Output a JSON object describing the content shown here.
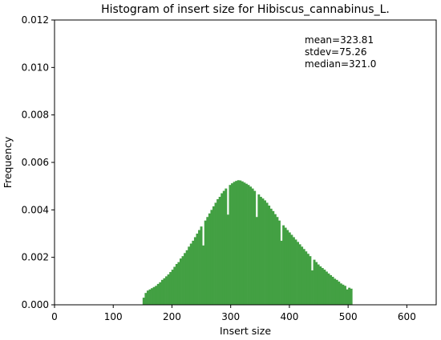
{
  "chart_data": {
    "type": "bar",
    "title": "Histogram of insert size for Hibiscus_cannabinus_L.",
    "xlabel": "Insert size",
    "ylabel": "Frequency",
    "xlim": [
      0,
      650
    ],
    "ylim": [
      0,
      0.012
    ],
    "x_ticks": [
      "0",
      "100",
      "200",
      "300",
      "400",
      "500",
      "600"
    ],
    "y_ticks": [
      "0.000",
      "0.002",
      "0.004",
      "0.006",
      "0.008",
      "0.010",
      "0.012"
    ],
    "bar_color": "#43a043",
    "stats": [
      "mean=323.81",
      "stdev=75.26",
      "median=321.0"
    ],
    "bins_start": 150,
    "bin_width": 3.5,
    "values": [
      0.0003,
      0.0005,
      0.0006,
      0.00065,
      0.0007,
      0.00075,
      0.0008,
      0.00088,
      0.00095,
      0.00105,
      0.00112,
      0.0012,
      0.00128,
      0.00138,
      0.00148,
      0.0016,
      0.00172,
      0.0018,
      0.00195,
      0.00205,
      0.00218,
      0.0023,
      0.00245,
      0.00258,
      0.0027,
      0.00285,
      0.003,
      0.00315,
      0.0033,
      0.0025,
      0.00355,
      0.0037,
      0.00385,
      0.004,
      0.00415,
      0.0043,
      0.00445,
      0.00455,
      0.0047,
      0.0048,
      0.0049,
      0.0038,
      0.00505,
      0.00512,
      0.00518,
      0.00522,
      0.00525,
      0.00524,
      0.0052,
      0.00515,
      0.0051,
      0.00505,
      0.00498,
      0.0049,
      0.0048,
      0.0037,
      0.00465,
      0.00455,
      0.00448,
      0.0044,
      0.0043,
      0.00418,
      0.00405,
      0.00395,
      0.00382,
      0.0037,
      0.00355,
      0.0027,
      0.00335,
      0.00325,
      0.00315,
      0.00305,
      0.00295,
      0.00285,
      0.00275,
      0.00265,
      0.00255,
      0.00245,
      0.00235,
      0.00225,
      0.00215,
      0.00205,
      0.00145,
      0.0019,
      0.0018,
      0.0017,
      0.00162,
      0.00155,
      0.00148,
      0.0014,
      0.00132,
      0.00125,
      0.00118,
      0.0011,
      0.00105,
      0.00098,
      0.0009,
      0.00085,
      0.0008,
      0.00065,
      0.00072,
      0.00068
    ]
  }
}
